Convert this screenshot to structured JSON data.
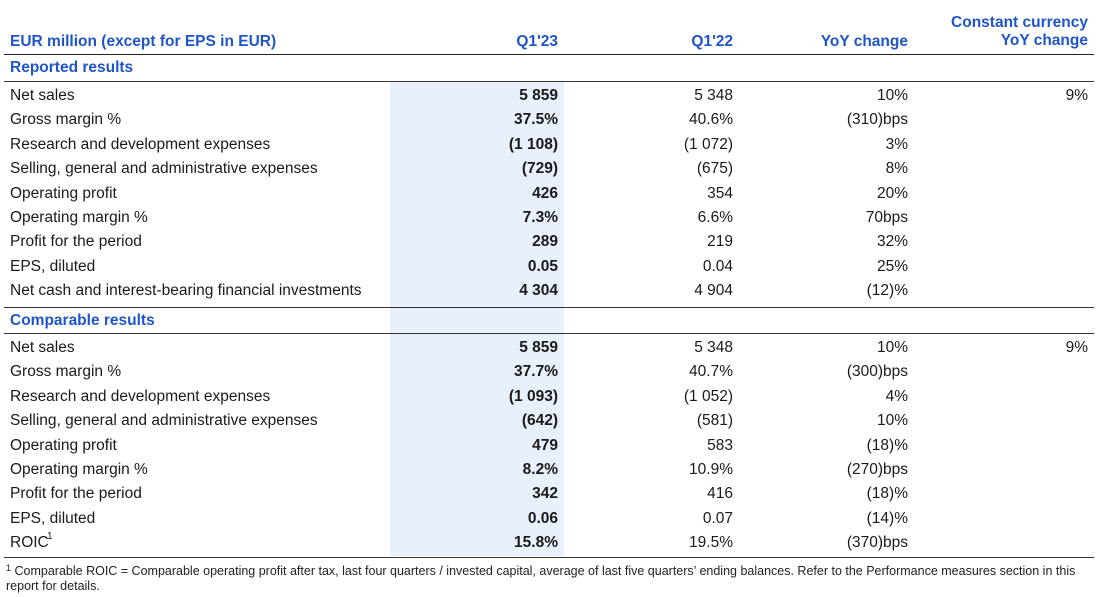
{
  "header": {
    "col0": "EUR million (except for EPS in EUR)",
    "col1": "Q1'23",
    "col2": "Q1'22",
    "col3": "YoY change",
    "col4_line1": "Constant currency",
    "col4_line2": "YoY change"
  },
  "reported": {
    "title": "Reported results",
    "rows": [
      {
        "label": "Net sales",
        "q123": "5 859",
        "q122": "5 348",
        "yoy": "10%",
        "cc": "9%"
      },
      {
        "label": "Gross margin %",
        "q123": "37.5%",
        "q122": "40.6%",
        "yoy": "(310)bps",
        "cc": ""
      },
      {
        "label": "Research and development expenses",
        "q123": "(1 108)",
        "q122": "(1 072)",
        "yoy": "3%",
        "cc": ""
      },
      {
        "label": "Selling, general and administrative expenses",
        "q123": "(729)",
        "q122": "(675)",
        "yoy": "8%",
        "cc": ""
      },
      {
        "label": "Operating profit",
        "q123": "426",
        "q122": "354",
        "yoy": "20%",
        "cc": ""
      },
      {
        "label": "Operating margin %",
        "q123": "7.3%",
        "q122": "6.6%",
        "yoy": "70bps",
        "cc": ""
      },
      {
        "label": "Profit for the period",
        "q123": "289",
        "q122": "219",
        "yoy": "32%",
        "cc": ""
      },
      {
        "label": "EPS, diluted",
        "q123": "0.05",
        "q122": "0.04",
        "yoy": "25%",
        "cc": ""
      },
      {
        "label": "Net cash and interest-bearing financial investments",
        "q123": "4 304",
        "q122": "4 904",
        "yoy": "(12)%",
        "cc": ""
      }
    ]
  },
  "comparable": {
    "title": "Comparable results",
    "rows": [
      {
        "label": "Net sales",
        "q123": "5 859",
        "q122": "5 348",
        "yoy": "10%",
        "cc": "9%"
      },
      {
        "label": "Gross margin %",
        "q123": "37.7%",
        "q122": "40.7%",
        "yoy": "(300)bps",
        "cc": ""
      },
      {
        "label": "Research and development expenses",
        "q123": "(1 093)",
        "q122": "(1 052)",
        "yoy": "4%",
        "cc": ""
      },
      {
        "label": "Selling, general and administrative expenses",
        "q123": "(642)",
        "q122": "(581)",
        "yoy": "10%",
        "cc": ""
      },
      {
        "label": "Operating profit",
        "q123": "479",
        "q122": "583",
        "yoy": "(18)%",
        "cc": ""
      },
      {
        "label": "Operating margin %",
        "q123": "8.2%",
        "q122": "10.9%",
        "yoy": "(270)bps",
        "cc": ""
      },
      {
        "label": "Profit for the period",
        "q123": "342",
        "q122": "416",
        "yoy": "(18)%",
        "cc": ""
      },
      {
        "label": "EPS, diluted",
        "q123": "0.06",
        "q122": "0.07",
        "yoy": "(14)%",
        "cc": ""
      },
      {
        "label": "ROIC",
        "q123": "15.8%",
        "q122": "19.5%",
        "yoy": "(370)bps",
        "cc": ""
      }
    ],
    "roic_footnote_marker": "1"
  },
  "footnote": {
    "marker": "1",
    "text": "Comparable ROIC = Comparable operating profit after tax, last four quarters / invested capital, average of last five quarters’ ending balances. Refer to the Performance measures section in this report for details."
  }
}
